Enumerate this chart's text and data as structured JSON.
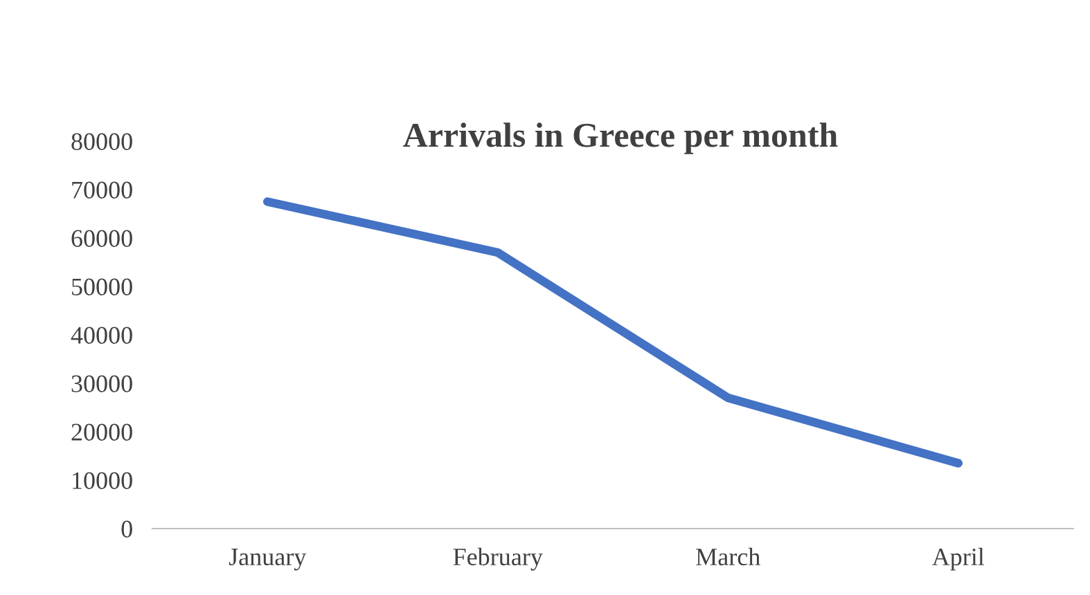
{
  "chart_data": {
    "type": "line",
    "title": "Arrivals in Greece per month",
    "categories": [
      "January",
      "February",
      "March",
      "April"
    ],
    "series": [
      {
        "color": "#4472c4",
        "values": [
          67500,
          57000,
          27000,
          13500
        ]
      }
    ],
    "ylim": [
      0,
      80000
    ],
    "yticks": [
      0,
      10000,
      20000,
      30000,
      40000,
      50000,
      60000,
      70000,
      80000
    ],
    "marker": "none",
    "line_style": "solid"
  }
}
